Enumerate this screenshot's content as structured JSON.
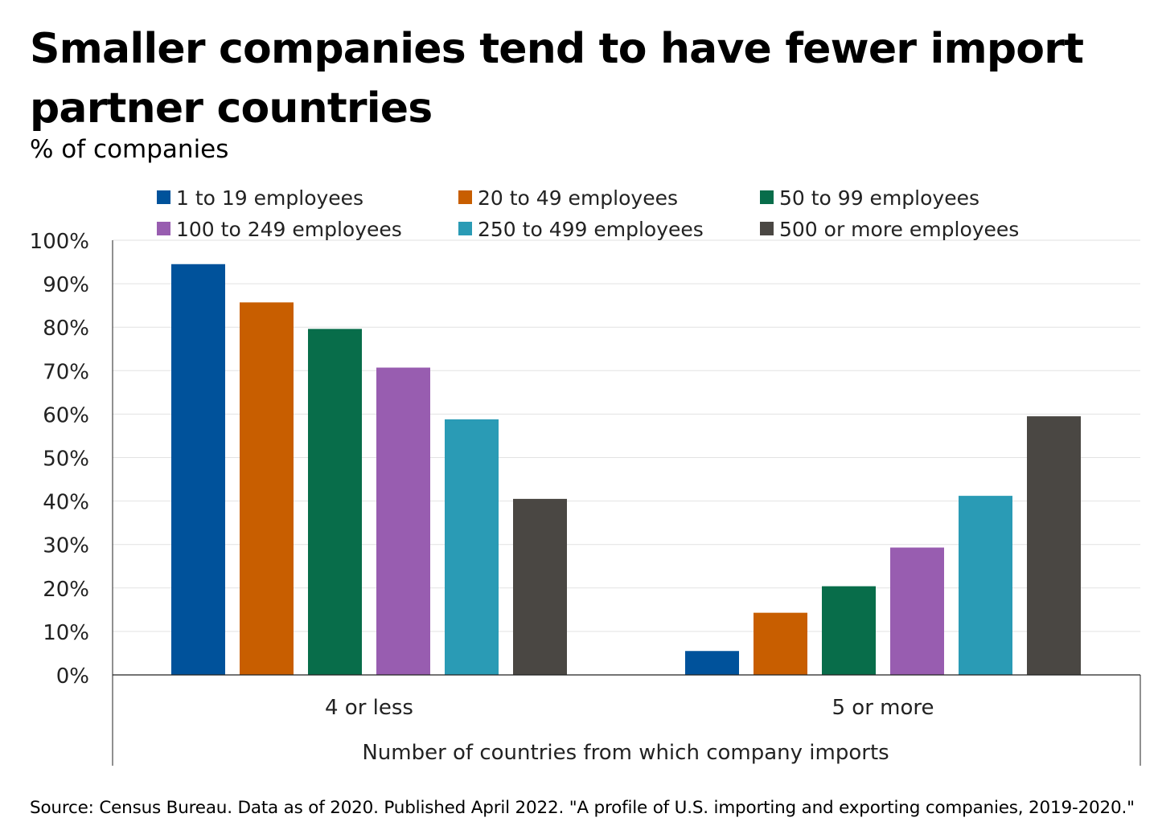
{
  "header": {
    "title": "Smaller companies tend to have fewer import partner countries",
    "subtitle": "% of companies"
  },
  "footer": {
    "source": "Source: Census Bureau. Data as of 2020. Published April 2022. \"A profile of U.S. importing and exporting companies, 2019-2020.\""
  },
  "chart_data": {
    "type": "bar",
    "title": "Smaller companies tend to have fewer import partner countries",
    "subtitle": "% of companies",
    "xlabel": "Number of countries from which company imports",
    "ylabel": "% of companies",
    "categories": [
      "4 or less",
      "5 or more"
    ],
    "ylim": [
      0,
      100
    ],
    "yticks": [
      0,
      10,
      20,
      30,
      40,
      50,
      60,
      70,
      80,
      90,
      100
    ],
    "ytick_labels": [
      "0%",
      "10%",
      "20%",
      "30%",
      "40%",
      "50%",
      "60%",
      "70%",
      "80%",
      "90%",
      "100%"
    ],
    "grid": true,
    "legend_position": "top",
    "series": [
      {
        "name": "1 to 19 employees",
        "color": "#00529B",
        "values": [
          94.5,
          5.5
        ]
      },
      {
        "name": "20 to 49 employees",
        "color": "#C85E00",
        "values": [
          85.7,
          14.3
        ]
      },
      {
        "name": "50 to 99 employees",
        "color": "#086D4A",
        "values": [
          79.6,
          20.4
        ]
      },
      {
        "name": "100 to 249 employees",
        "color": "#985DB0",
        "values": [
          70.7,
          29.3
        ]
      },
      {
        "name": "250 to 499 employees",
        "color": "#2A9BB5",
        "values": [
          58.8,
          41.2
        ]
      },
      {
        "name": "500 or more employees",
        "color": "#4A4743",
        "values": [
          40.5,
          59.5
        ]
      }
    ]
  }
}
